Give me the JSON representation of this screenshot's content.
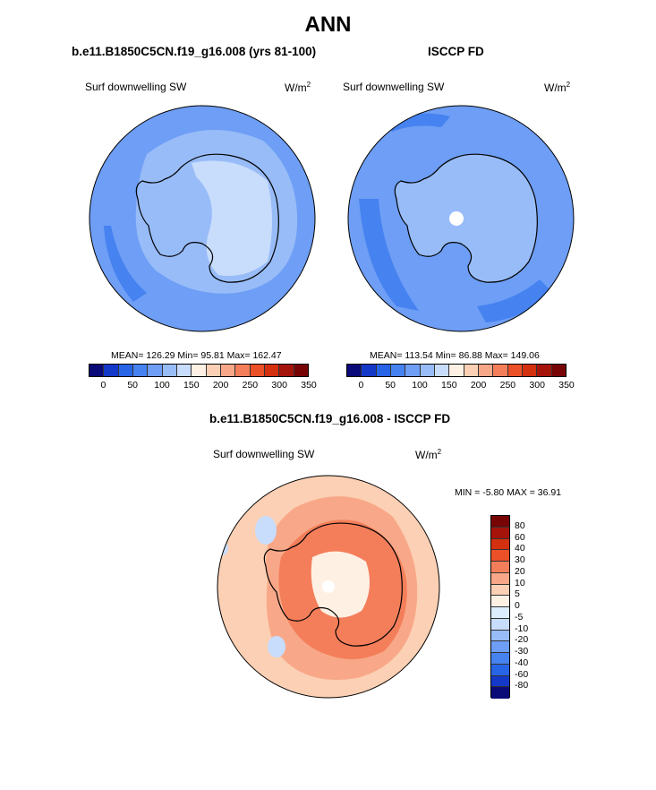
{
  "title": "ANN",
  "panels": {
    "model": {
      "case": "b.e11.B1850C5CN.f19_g16.008 (yrs 81-100)",
      "field": "Surf downwelling SW",
      "units": "W/m",
      "units_sup": "2",
      "stats": "MEAN= 126.29  Min=  95.81  Max= 162.47"
    },
    "obs": {
      "case": "ISCCP FD",
      "field": "Surf downwelling SW",
      "units": "W/m",
      "units_sup": "2",
      "stats": "MEAN= 113.54  Min=  86.88  Max= 149.06"
    },
    "diff": {
      "case": "b.e11.B1850C5CN.f19_g16.008 - ISCCP FD",
      "field": "Surf downwelling SW",
      "units": "W/m",
      "units_sup": "2",
      "stats": "MIN =  -5.80 MAX =  36.91"
    }
  },
  "colorbar_horizontal": {
    "colors": [
      "#0a0a78",
      "#1438c8",
      "#2864e6",
      "#4682f0",
      "#6e9ef5",
      "#98bcf8",
      "#c8dcfc",
      "#fff0e4",
      "#fcd0b4",
      "#f8a888",
      "#f47e5a",
      "#ec5028",
      "#d2300f",
      "#a5140a",
      "#780505"
    ],
    "ticks": [
      "0",
      "50",
      "100",
      "150",
      "200",
      "250",
      "300",
      "350"
    ]
  },
  "colorbar_vertical": {
    "colors": [
      "#780505",
      "#a5140a",
      "#d2300f",
      "#ec5028",
      "#f47e5a",
      "#f8a888",
      "#fcd0b4",
      "#fff0e4",
      "#ddeeff",
      "#c8dcfc",
      "#98bcf8",
      "#6e9ef5",
      "#4682f0",
      "#2864e6",
      "#1438c8",
      "#0a0a78"
    ],
    "labels": [
      "80",
      "60",
      "40",
      "30",
      "20",
      "10",
      "5",
      "0",
      "-5",
      "-10",
      "-20",
      "-30",
      "-40",
      "-60",
      "-80"
    ]
  },
  "map_colors": {
    "ocean_model": "#6e9ef5",
    "land_model": "#98bcf8",
    "interior_model": "#c8dcfc",
    "band_dark": "#4682f0",
    "ocean_obs": "#6e9ef5",
    "land_obs": "#98bcf8",
    "diff_bg": "#fcd0b4",
    "diff_mid": "#f8a888",
    "diff_high": "#f47e5a",
    "diff_light": "#fff0e4",
    "diff_blue": "#c8dcfc"
  }
}
